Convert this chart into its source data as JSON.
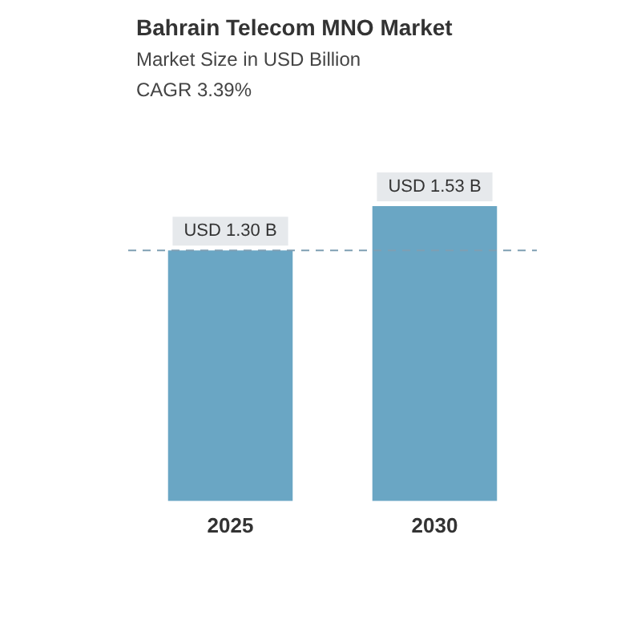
{
  "chart_data": {
    "type": "bar",
    "title": "Bahrain Telecom MNO Market",
    "subtitle": "Market Size in USD Billion",
    "annotations": [
      "CAGR 3.39%"
    ],
    "categories": [
      "2025",
      "2030"
    ],
    "values": [
      1.3,
      1.53
    ],
    "value_labels": [
      "USD 1.30 B",
      "USD 1.53 B"
    ],
    "color": "#6aa6c4",
    "tick_labels": "x",
    "grid": false,
    "legend": false,
    "ref_lines": [
      {
        "axis": "y",
        "value": 1.3,
        "color": "#7f9fb3",
        "line_style": "dashed"
      }
    ]
  }
}
